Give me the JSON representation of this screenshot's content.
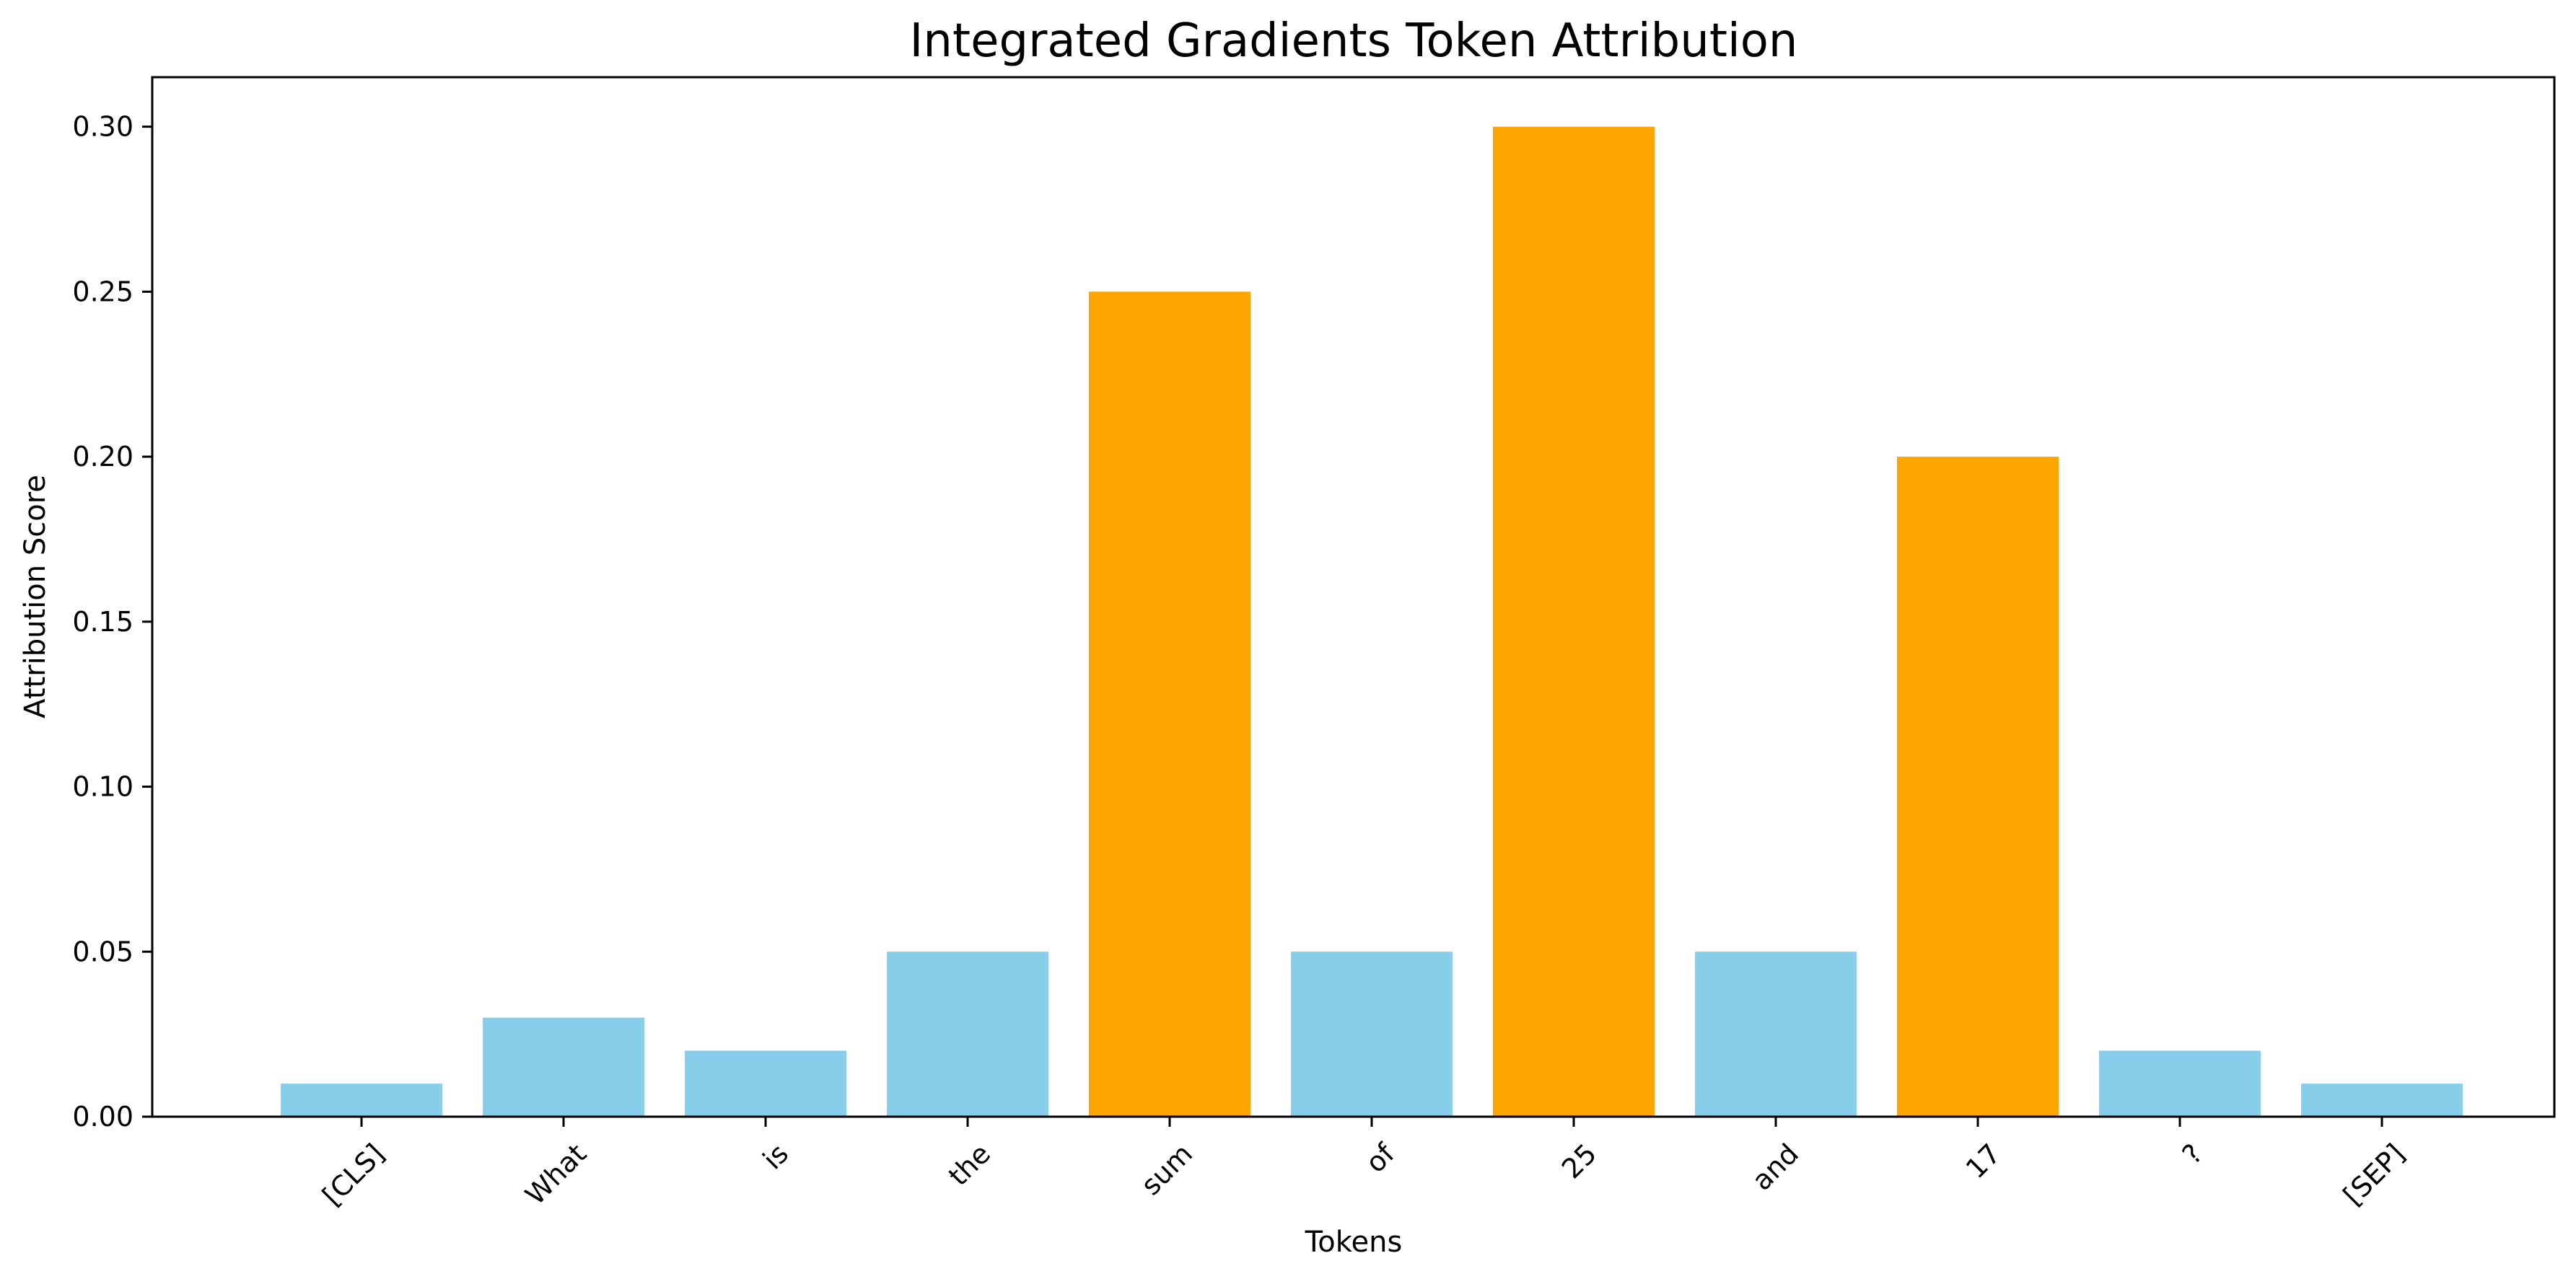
{
  "chart_data": {
    "type": "bar",
    "title": "Integrated Gradients Token Attribution",
    "xlabel": "Tokens",
    "ylabel": "Attribution Score",
    "categories": [
      "[CLS]",
      "What",
      "is",
      "the",
      "sum",
      "of",
      "25",
      "and",
      "17",
      "?",
      "[SEP]"
    ],
    "values": [
      0.01,
      0.03,
      0.02,
      0.05,
      0.25,
      0.05,
      0.3,
      0.05,
      0.2,
      0.02,
      0.01
    ],
    "highlighted": [
      false,
      false,
      false,
      false,
      true,
      false,
      true,
      false,
      true,
      false,
      false
    ],
    "ylim": [
      0,
      0.315
    ],
    "yticks": [
      "0.00",
      "0.05",
      "0.10",
      "0.15",
      "0.20",
      "0.25",
      "0.30"
    ],
    "grid": false,
    "colors": {
      "default": "#87CEEB",
      "highlight": "#FFA500"
    }
  }
}
